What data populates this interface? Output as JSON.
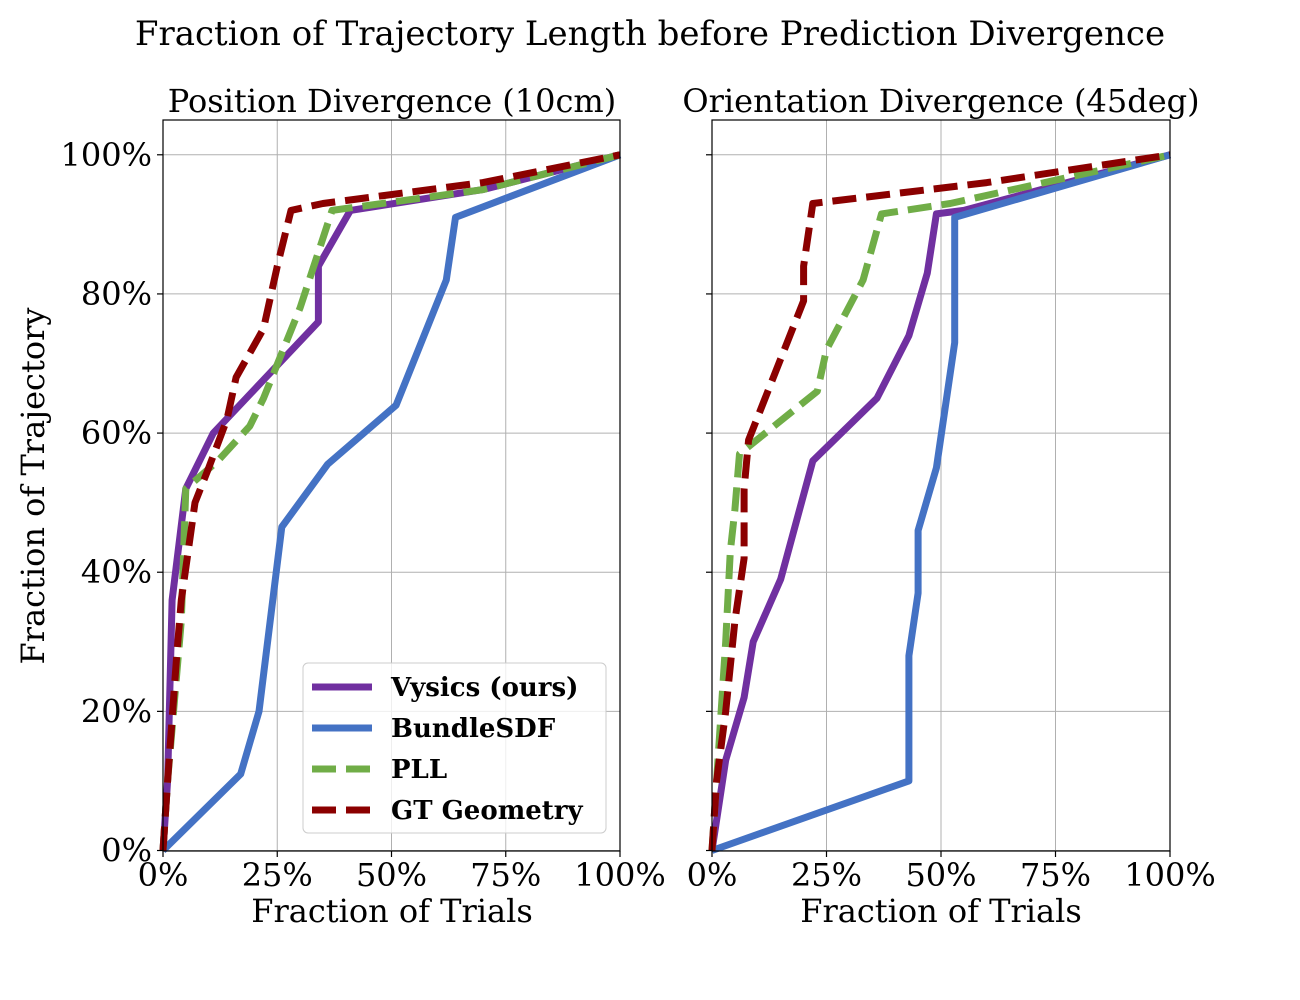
{
  "suptitle": "Fraction of Trajectory Length before Prediction Divergence",
  "chart_data": [
    {
      "type": "line",
      "title": "Position Divergence (10cm)",
      "xlabel": "Fraction of Trials",
      "ylabel": "Fraction of Trajectory",
      "xlim": [
        0,
        1
      ],
      "ylim": [
        -0.0007,
        1.05
      ],
      "xticks": [
        "0%",
        "25%",
        "50%",
        "75%",
        "100%"
      ],
      "yticks": [
        "0%",
        "20%",
        "40%",
        "60%",
        "80%",
        "100%"
      ],
      "grid": true,
      "legend_placement": "lower-right",
      "series": [
        {
          "name": "Vysics (ours)",
          "color": "#7030a0",
          "dashed": false,
          "x": [
            0.0,
            0.01,
            0.02,
            0.05,
            0.11,
            0.34,
            0.34,
            0.41,
            0.7,
            1.0
          ],
          "y": [
            0.0,
            0.1,
            0.36,
            0.52,
            0.6,
            0.76,
            0.84,
            0.92,
            0.95,
            1.0
          ]
        },
        {
          "name": "BundleSDF",
          "color": "#4472c4",
          "dashed": false,
          "x": [
            0.0,
            0.17,
            0.21,
            0.26,
            0.36,
            0.51,
            0.62,
            0.64,
            1.0
          ],
          "y": [
            0.0,
            0.11,
            0.2,
            0.465,
            0.555,
            0.64,
            0.82,
            0.91,
            1.0
          ]
        },
        {
          "name": "PLL",
          "color": "#70ad47",
          "dashed": false,
          "x": [
            0.0,
            0.01,
            0.04,
            0.05,
            0.12,
            0.19,
            0.22,
            0.3,
            0.37,
            0.7,
            1.0
          ],
          "y": [
            0.0,
            0.1,
            0.33,
            0.52,
            0.56,
            0.61,
            0.65,
            0.78,
            0.92,
            0.95,
            1.0
          ]
        },
        {
          "name": "GT Geometry",
          "color": "#8b0000",
          "dashed": true,
          "x": [
            0.0,
            0.01,
            0.03,
            0.04,
            0.07,
            0.1,
            0.14,
            0.16,
            0.22,
            0.25,
            0.28,
            0.35,
            0.7,
            1.0
          ],
          "y": [
            0.0,
            0.1,
            0.28,
            0.36,
            0.5,
            0.55,
            0.62,
            0.68,
            0.75,
            0.84,
            0.92,
            0.93,
            0.96,
            1.0
          ]
        }
      ]
    },
    {
      "type": "line",
      "title": "Orientation Divergence (45deg)",
      "xlabel": "Fraction of Trials",
      "xlim": [
        0,
        1
      ],
      "ylim": [
        -0.0007,
        1.05
      ],
      "xticks": [
        "0%",
        "25%",
        "50%",
        "75%",
        "100%"
      ],
      "grid": true,
      "series": [
        {
          "name": "Vysics (ours)",
          "color": "#7030a0",
          "dashed": false,
          "x": [
            0.0,
            0.03,
            0.07,
            0.09,
            0.15,
            0.22,
            0.36,
            0.43,
            0.47,
            0.49,
            0.55,
            1.0
          ],
          "y": [
            0.0,
            0.13,
            0.22,
            0.3,
            0.39,
            0.56,
            0.65,
            0.74,
            0.83,
            0.915,
            0.92,
            1.0
          ]
        },
        {
          "name": "BundleSDF",
          "color": "#4472c4",
          "dashed": false,
          "x": [
            0.0,
            0.43,
            0.43,
            0.45,
            0.45,
            0.49,
            0.53,
            0.53,
            0.53,
            1.0
          ],
          "y": [
            0.0,
            0.1,
            0.28,
            0.37,
            0.46,
            0.55,
            0.73,
            0.91,
            0.91,
            1.0
          ]
        },
        {
          "name": "PLL",
          "color": "#70ad47",
          "dashed": false,
          "x": [
            0.0,
            0.01,
            0.03,
            0.04,
            0.05,
            0.06,
            0.23,
            0.25,
            0.33,
            0.37,
            0.52,
            1.0
          ],
          "y": [
            0.0,
            0.1,
            0.3,
            0.43,
            0.49,
            0.57,
            0.66,
            0.72,
            0.82,
            0.915,
            0.93,
            1.0
          ]
        },
        {
          "name": "GT Geometry",
          "color": "#8b0000",
          "dashed": true,
          "x": [
            0.0,
            0.01,
            0.03,
            0.05,
            0.07,
            0.07,
            0.08,
            0.2,
            0.2,
            0.22,
            0.6,
            1.0
          ],
          "y": [
            0.0,
            0.1,
            0.2,
            0.33,
            0.42,
            0.52,
            0.59,
            0.79,
            0.84,
            0.93,
            0.96,
            1.0
          ]
        }
      ]
    }
  ]
}
